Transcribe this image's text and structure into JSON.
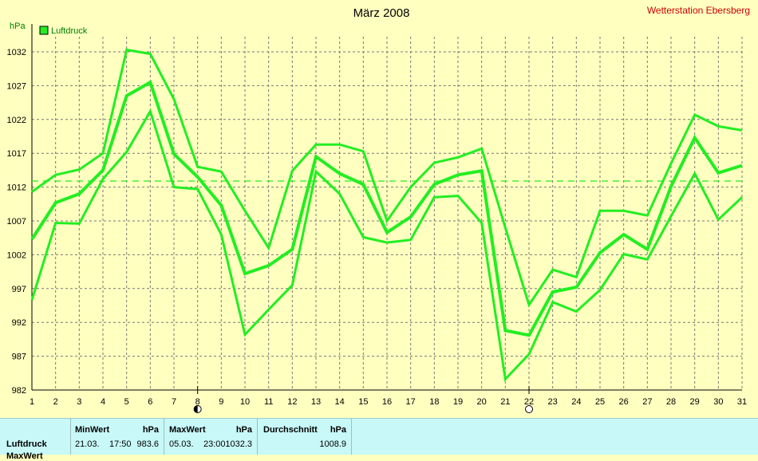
{
  "header": {
    "title": "März 2008",
    "station": "Wetterstation Ebersberg",
    "unit": "hPa"
  },
  "legend": {
    "label": "Luftdruck",
    "color": "#22ee22"
  },
  "chart_data": {
    "type": "line",
    "title": "März 2008",
    "ylabel": "hPa",
    "xlabel": "",
    "ylim": [
      982,
      1032
    ],
    "xlim": [
      1,
      31
    ],
    "y_ticks": [
      982,
      987,
      992,
      997,
      1002,
      1007,
      1012,
      1017,
      1022,
      1027,
      1032
    ],
    "x": [
      1,
      2,
      3,
      4,
      5,
      6,
      7,
      8,
      9,
      10,
      11,
      12,
      13,
      14,
      15,
      16,
      17,
      18,
      19,
      20,
      21,
      22,
      23,
      24,
      25,
      26,
      27,
      28,
      29,
      30,
      31
    ],
    "grid": true,
    "legend_position": "top-left",
    "average_line": 1012.9,
    "moon_phases": [
      {
        "day": 8,
        "phase": "half"
      },
      {
        "day": 22,
        "phase": "full"
      }
    ],
    "series": [
      {
        "name": "Luftdruck",
        "role": "max",
        "values": [
          1011.3,
          1013.8,
          1014.6,
          1017,
          1032.3,
          1031.7,
          1025,
          1015,
          1014.3,
          1008.5,
          1003,
          1014.4,
          1018.3,
          1018.3,
          1017.3,
          1007,
          1012,
          1015.6,
          1016.4,
          1017.7,
          1006,
          994.6,
          999.8,
          998.7,
          1008.5,
          1008.5,
          1007.8,
          1015.5,
          1022.7,
          1021,
          1020.4
        ]
      },
      {
        "name": "Luftdruck",
        "role": "avg",
        "values": [
          1004.3,
          1009.7,
          1011,
          1014.5,
          1025.5,
          1027.5,
          1016.9,
          1013.5,
          1009.3,
          999.2,
          1000.4,
          1002.8,
          1016.5,
          1014,
          1012.4,
          1005.3,
          1007.6,
          1012.4,
          1013.8,
          1014.4,
          990.8,
          990.1,
          996.5,
          997.2,
          1002.3,
          1005,
          1002.8,
          1012.1,
          1019.3,
          1014.1,
          1015.2
        ]
      },
      {
        "name": "Luftdruck",
        "role": "min",
        "values": [
          995.3,
          1006.7,
          1006.6,
          1013.2,
          1017.2,
          1023.2,
          1012,
          1011.7,
          1005,
          990.2,
          993.9,
          997.5,
          1014.3,
          1011,
          1004.6,
          1003.8,
          1004.2,
          1010.5,
          1010.7,
          1006.7,
          983.6,
          987.3,
          995,
          993.6,
          996.8,
          1002.1,
          1001.3,
          1007.7,
          1014,
          1007.2,
          1010.5
        ]
      }
    ]
  },
  "stats": {
    "row_label": "Luftdruck",
    "row_label_2": "MaxWert",
    "min": {
      "header": "MinWert",
      "unit": "hPa",
      "date": "21.03.",
      "time": "17:50",
      "value": "983.6"
    },
    "max": {
      "header": "MaxWert",
      "unit": "hPa",
      "date": "05.03.",
      "time": "23:00",
      "value": "1032.3"
    },
    "avg": {
      "header": "Durchschnitt",
      "unit": "hPa",
      "value": "1008.9"
    }
  }
}
